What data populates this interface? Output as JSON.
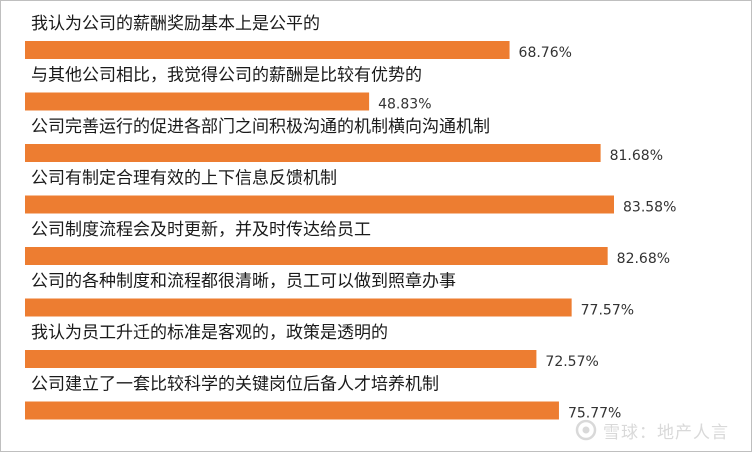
{
  "chart_data": {
    "type": "bar",
    "orientation": "horizontal",
    "categories": [
      "我认为公司的薪酬奖励基本上是公平的",
      "与其他公司相比，我觉得公司的薪酬是比较有优势的",
      "公司完善运行的促进各部门之间积极沟通的机制横向沟通机制",
      "公司有制定合理有效的上下信息反馈机制",
      "公司制度流程会及时更新，并及时传达给员工",
      "公司的各种制度和流程都很清晰，员工可以做到照章办事",
      "我认为员工升迁的标准是客观的，政策是透明的",
      "公司建立了一套比较科学的关键岗位后备人才培养机制"
    ],
    "values": [
      68.76,
      48.83,
      81.68,
      83.58,
      82.68,
      77.57,
      72.57,
      75.77
    ],
    "value_labels": [
      "68.76%",
      "48.83%",
      "81.68%",
      "83.58%",
      "82.68%",
      "77.57%",
      "72.57%",
      "75.77%"
    ],
    "xlim": [
      0,
      100
    ],
    "bar_color": "#ed7d31",
    "grid": false,
    "legend": "none"
  },
  "watermark": {
    "text": "雪球：地产人言",
    "icon": "snowball-logo-icon"
  }
}
